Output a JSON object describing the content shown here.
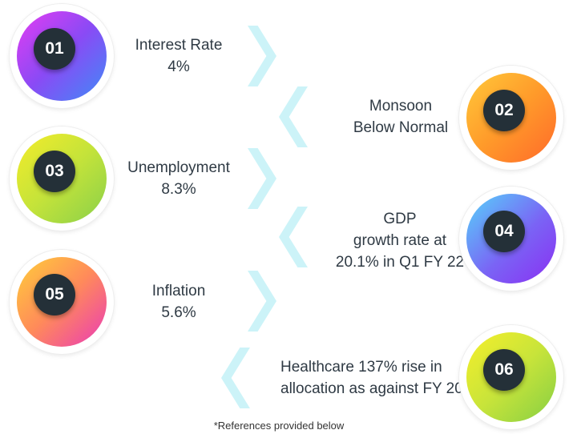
{
  "items": [
    {
      "number": "01",
      "lines": [
        "Interest Rate",
        "4%"
      ]
    },
    {
      "number": "02",
      "lines": [
        "Monsoon",
        "Below Normal"
      ]
    },
    {
      "number": "03",
      "lines": [
        "Unemployment",
        "8.3%"
      ]
    },
    {
      "number": "04",
      "lines": [
        "GDP",
        "growth rate at",
        "20.1% in Q1 FY 22"
      ]
    },
    {
      "number": "05",
      "lines": [
        "Inflation",
        "5.6%"
      ]
    },
    {
      "number": "06",
      "lines": [
        "Healthcare 137% rise in",
        "allocation as against FY 20"
      ]
    }
  ],
  "footnote": "*References provided below",
  "colors": {
    "chevron": "#ccf3f8",
    "badge_core": "#243038",
    "text": "#2f3a44"
  }
}
